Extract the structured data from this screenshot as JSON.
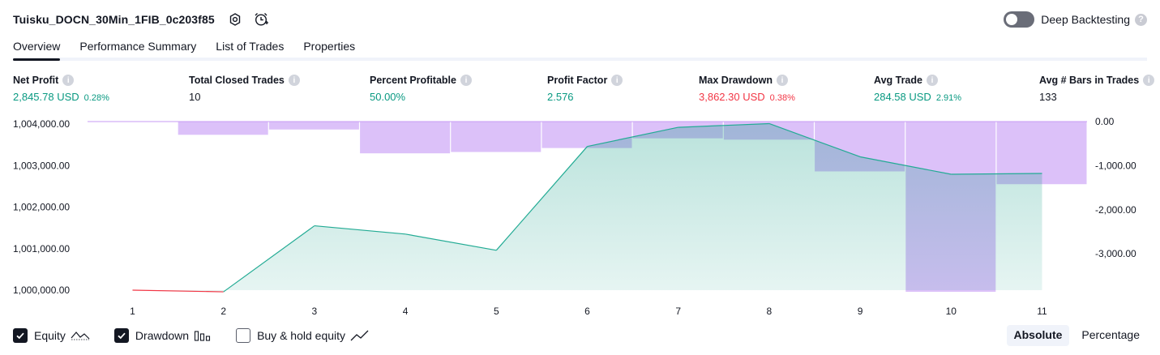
{
  "header": {
    "strategy_name": "Tuisku_DOCN_30Min_1FIB_0c203f85",
    "deep_backtesting_label": "Deep Backtesting",
    "deep_backtesting_enabled": false,
    "help_glyph": "?"
  },
  "tabs": [
    {
      "label": "Overview",
      "active": true
    },
    {
      "label": "Performance Summary",
      "active": false
    },
    {
      "label": "List of Trades",
      "active": false
    },
    {
      "label": "Properties",
      "active": false
    }
  ],
  "metrics": {
    "info_glyph": "i",
    "net_profit": {
      "label": "Net Profit",
      "value": "2,845.78 USD",
      "pct": "0.28%"
    },
    "total_closed_trades": {
      "label": "Total Closed Trades",
      "value": "10"
    },
    "percent_profitable": {
      "label": "Percent Profitable",
      "value": "50.00%"
    },
    "profit_factor": {
      "label": "Profit Factor",
      "value": "2.576"
    },
    "max_drawdown": {
      "label": "Max Drawdown",
      "value": "3,862.30 USD",
      "pct": "0.38%"
    },
    "avg_trade": {
      "label": "Avg Trade",
      "value": "284.58 USD",
      "pct": "2.91%"
    },
    "avg_bars": {
      "label": "Avg # Bars in Trades",
      "value": "133"
    }
  },
  "chart_data": {
    "type": "line",
    "x": [
      1,
      2,
      3,
      4,
      5,
      6,
      7,
      8,
      9,
      10,
      11
    ],
    "x_tick_labels": [
      "1",
      "2",
      "3",
      "4",
      "5",
      "6",
      "7",
      "8",
      "9",
      "10",
      "11"
    ],
    "series": [
      {
        "name": "Equity",
        "axis": "left",
        "type": "area",
        "values": [
          1000000,
          999960,
          1001550,
          1001350,
          1000960,
          1003460,
          1003920,
          1004010,
          1003210,
          1002790,
          1002810
        ]
      },
      {
        "name": "Drawdown",
        "axis": "right",
        "type": "bar",
        "values": [
          0,
          -300,
          -180,
          -720,
          -690,
          -600,
          -380,
          -410,
          -1130,
          -3860,
          -1420
        ]
      }
    ],
    "left_axis": {
      "ticks": [
        "1,004,000.00",
        "1,003,000.00",
        "1,002,000.00",
        "1,001,000.00",
        "1,000,000.00"
      ],
      "range": [
        1000000,
        1004000
      ]
    },
    "right_axis": {
      "ticks": [
        "0.00",
        "-1,000.00",
        "-2,000.00",
        "-3,000.00"
      ],
      "range": [
        -3860,
        0
      ]
    },
    "colors": {
      "equity_line": "#22ab94",
      "equity_area": "#089981",
      "equity_negative": "#f23645",
      "drawdown": "#c79bf5"
    }
  },
  "legend": {
    "items": [
      {
        "label": "Equity",
        "checked": true,
        "icon": "equity-line-icon"
      },
      {
        "label": "Drawdown",
        "checked": true,
        "icon": "drawdown-bars-icon"
      },
      {
        "label": "Buy & hold equity",
        "checked": false,
        "icon": "buy-hold-line-icon"
      }
    ]
  },
  "modes": {
    "absolute": "Absolute",
    "percentage": "Percentage",
    "selected": "absolute"
  }
}
